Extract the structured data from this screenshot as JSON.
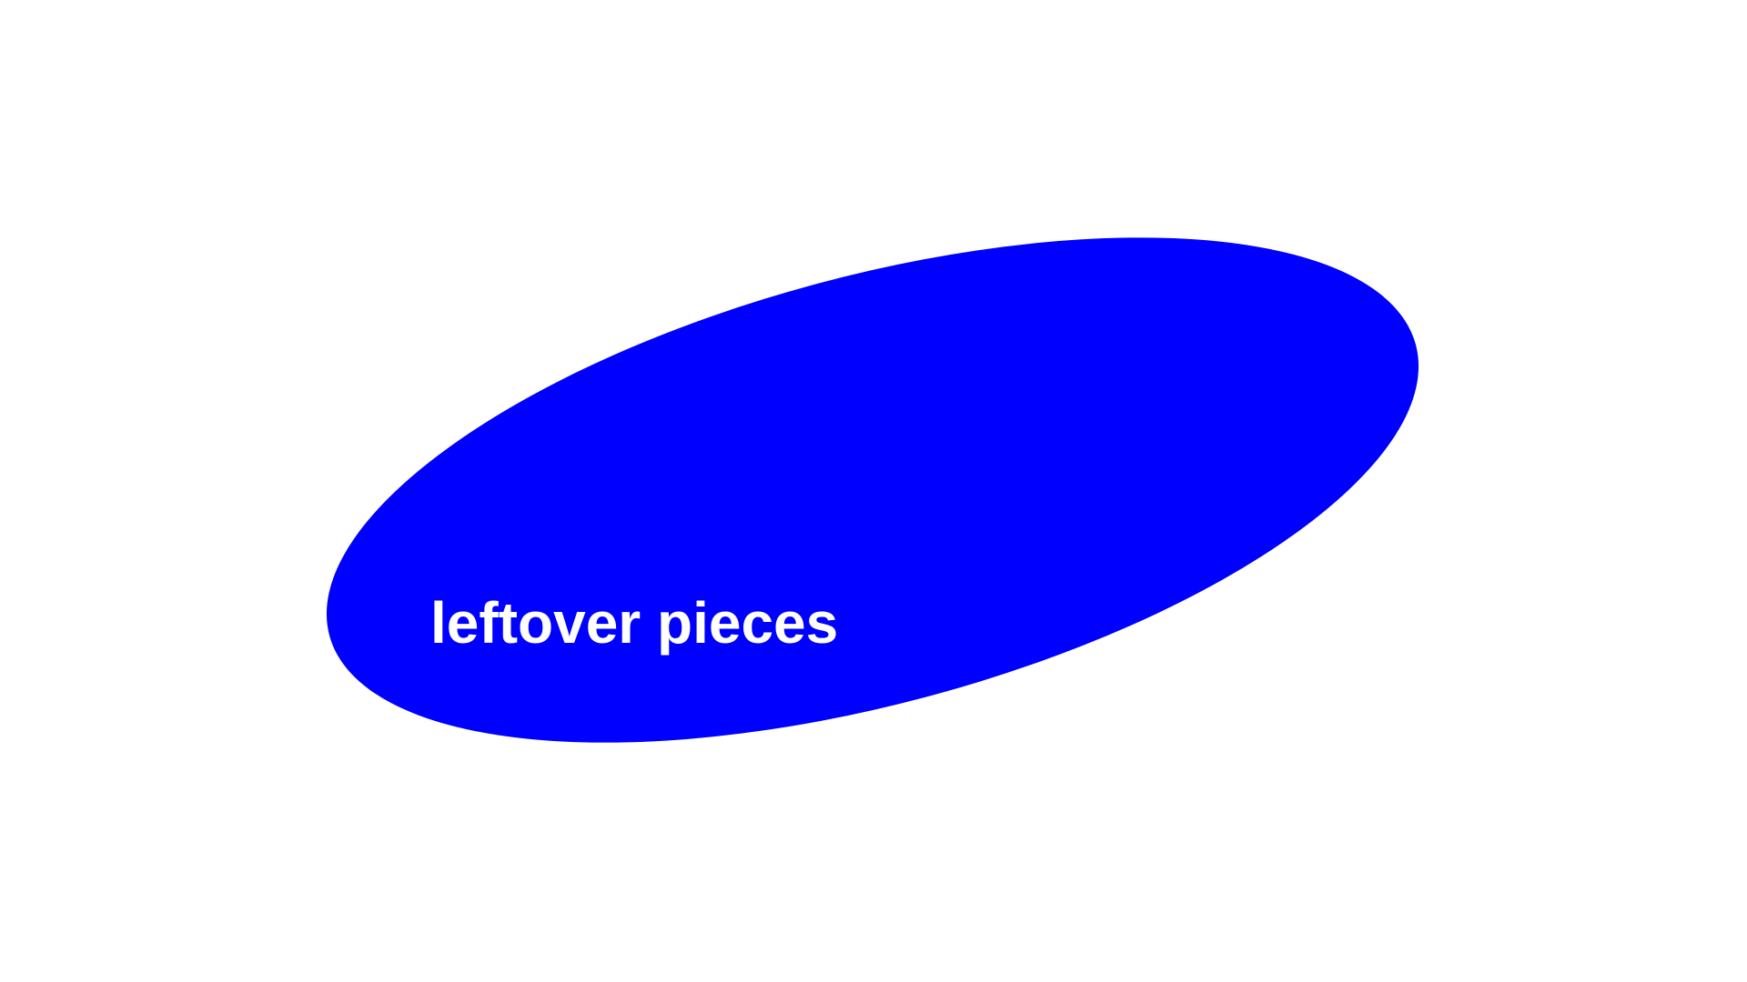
{
  "label": "leftover pieces"
}
